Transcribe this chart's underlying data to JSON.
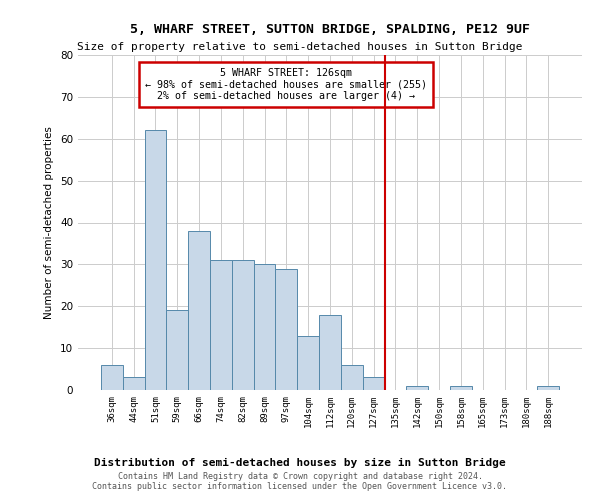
{
  "title": "5, WHARF STREET, SUTTON BRIDGE, SPALDING, PE12 9UF",
  "subtitle": "Size of property relative to semi-detached houses in Sutton Bridge",
  "xlabel": "Distribution of semi-detached houses by size in Sutton Bridge",
  "ylabel": "Number of semi-detached properties",
  "footer_line1": "Contains HM Land Registry data © Crown copyright and database right 2024.",
  "footer_line2": "Contains public sector information licensed under the Open Government Licence v3.0.",
  "annotation_title": "5 WHARF STREET: 126sqm",
  "annotation_line1": "← 98% of semi-detached houses are smaller (255)",
  "annotation_line2": "2% of semi-detached houses are larger (4) →",
  "bar_labels": [
    "36sqm",
    "44sqm",
    "51sqm",
    "59sqm",
    "66sqm",
    "74sqm",
    "82sqm",
    "89sqm",
    "97sqm",
    "104sqm",
    "112sqm",
    "120sqm",
    "127sqm",
    "135sqm",
    "142sqm",
    "150sqm",
    "158sqm",
    "165sqm",
    "173sqm",
    "180sqm",
    "188sqm"
  ],
  "bar_values": [
    6,
    3,
    62,
    19,
    38,
    31,
    31,
    30,
    29,
    13,
    18,
    6,
    3,
    0,
    1,
    0,
    1,
    0,
    0,
    0,
    1
  ],
  "bar_color": "#c8d8e8",
  "bar_edge_color": "#5588aa",
  "vline_color": "#cc0000",
  "annotation_box_color": "#cc0000",
  "background_color": "#ffffff",
  "grid_color": "#cccccc",
  "ylim": [
    0,
    80
  ],
  "yticks": [
    0,
    10,
    20,
    30,
    40,
    50,
    60,
    70,
    80
  ]
}
